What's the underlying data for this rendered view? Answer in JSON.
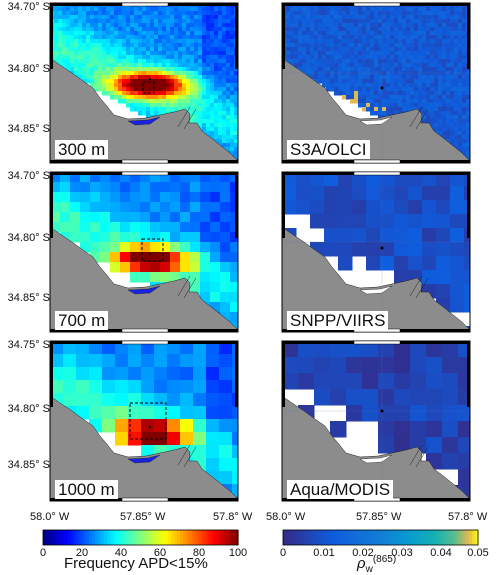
{
  "panels": [
    {
      "label": "300 m",
      "resolution_m": 300,
      "kind": "frequency"
    },
    {
      "label": "S3A/OLCI",
      "kind": "rho"
    },
    {
      "label": "700 m",
      "resolution_m": 700,
      "kind": "frequency"
    },
    {
      "label": "SNPP/VIIRS",
      "kind": "rho"
    },
    {
      "label": "1000 m",
      "resolution_m": 1000,
      "kind": "frequency"
    },
    {
      "label": "Aqua/MODIS",
      "kind": "rho"
    }
  ],
  "axes": {
    "row_lat_ticks": [
      [
        "34.70° S",
        "34.80° S",
        "34.85° S"
      ],
      [
        "34.70° S",
        "34.80° S",
        "34.85° S"
      ],
      [
        "34.75° S",
        "34.80° S",
        "34.85° S"
      ]
    ],
    "lon_ticks": [
      "58.0° W",
      "57.85° W",
      "57.8° W"
    ]
  },
  "colorbars": [
    {
      "title": "Frequency APD<15%",
      "ticks": [
        "0",
        "20",
        "40",
        "60",
        "80",
        "100"
      ],
      "min": 0,
      "max": 100
    },
    {
      "title_symbol": "ρ",
      "title_sub": "w",
      "title_sup": "(865)",
      "ticks": [
        "0",
        "0.01",
        "0.02",
        "0.03",
        "0.04",
        "0.05"
      ],
      "min": 0,
      "max": 0.05
    }
  ],
  "colors": {
    "land": "#8c8c8c",
    "colormap": "jet",
    "box": "#000000"
  },
  "chart_data": [
    {
      "type": "heatmap",
      "title": "300 m",
      "variable": "Frequency APD<15%",
      "range": [
        0,
        100
      ],
      "peak": 100,
      "typical_offshore": 25,
      "ylim_labels": [
        "34.70° S",
        "34.85° S"
      ],
      "xlim_labels": [
        "58.0° W",
        "57.8° W"
      ]
    },
    {
      "type": "heatmap",
      "title": "S3A/OLCI",
      "variable": "rho_w(865)",
      "range": [
        0,
        0.05
      ],
      "typical": 0.012,
      "max_nearshore": 0.05
    },
    {
      "type": "heatmap",
      "title": "700 m",
      "variable": "Frequency APD<15%",
      "range": [
        0,
        100
      ],
      "peak": 100,
      "typical_offshore": 25
    },
    {
      "type": "heatmap",
      "title": "SNPP/VIIRS",
      "variable": "rho_w(865)",
      "range": [
        0,
        0.05
      ],
      "typical": 0.008
    },
    {
      "type": "heatmap",
      "title": "1000 m",
      "variable": "Frequency APD<15%",
      "range": [
        0,
        100
      ],
      "peak": 100,
      "typical_offshore": 30
    },
    {
      "type": "heatmap",
      "title": "Aqua/MODIS",
      "variable": "rho_w(865)",
      "range": [
        0,
        0.05
      ],
      "typical": 0.005
    }
  ]
}
